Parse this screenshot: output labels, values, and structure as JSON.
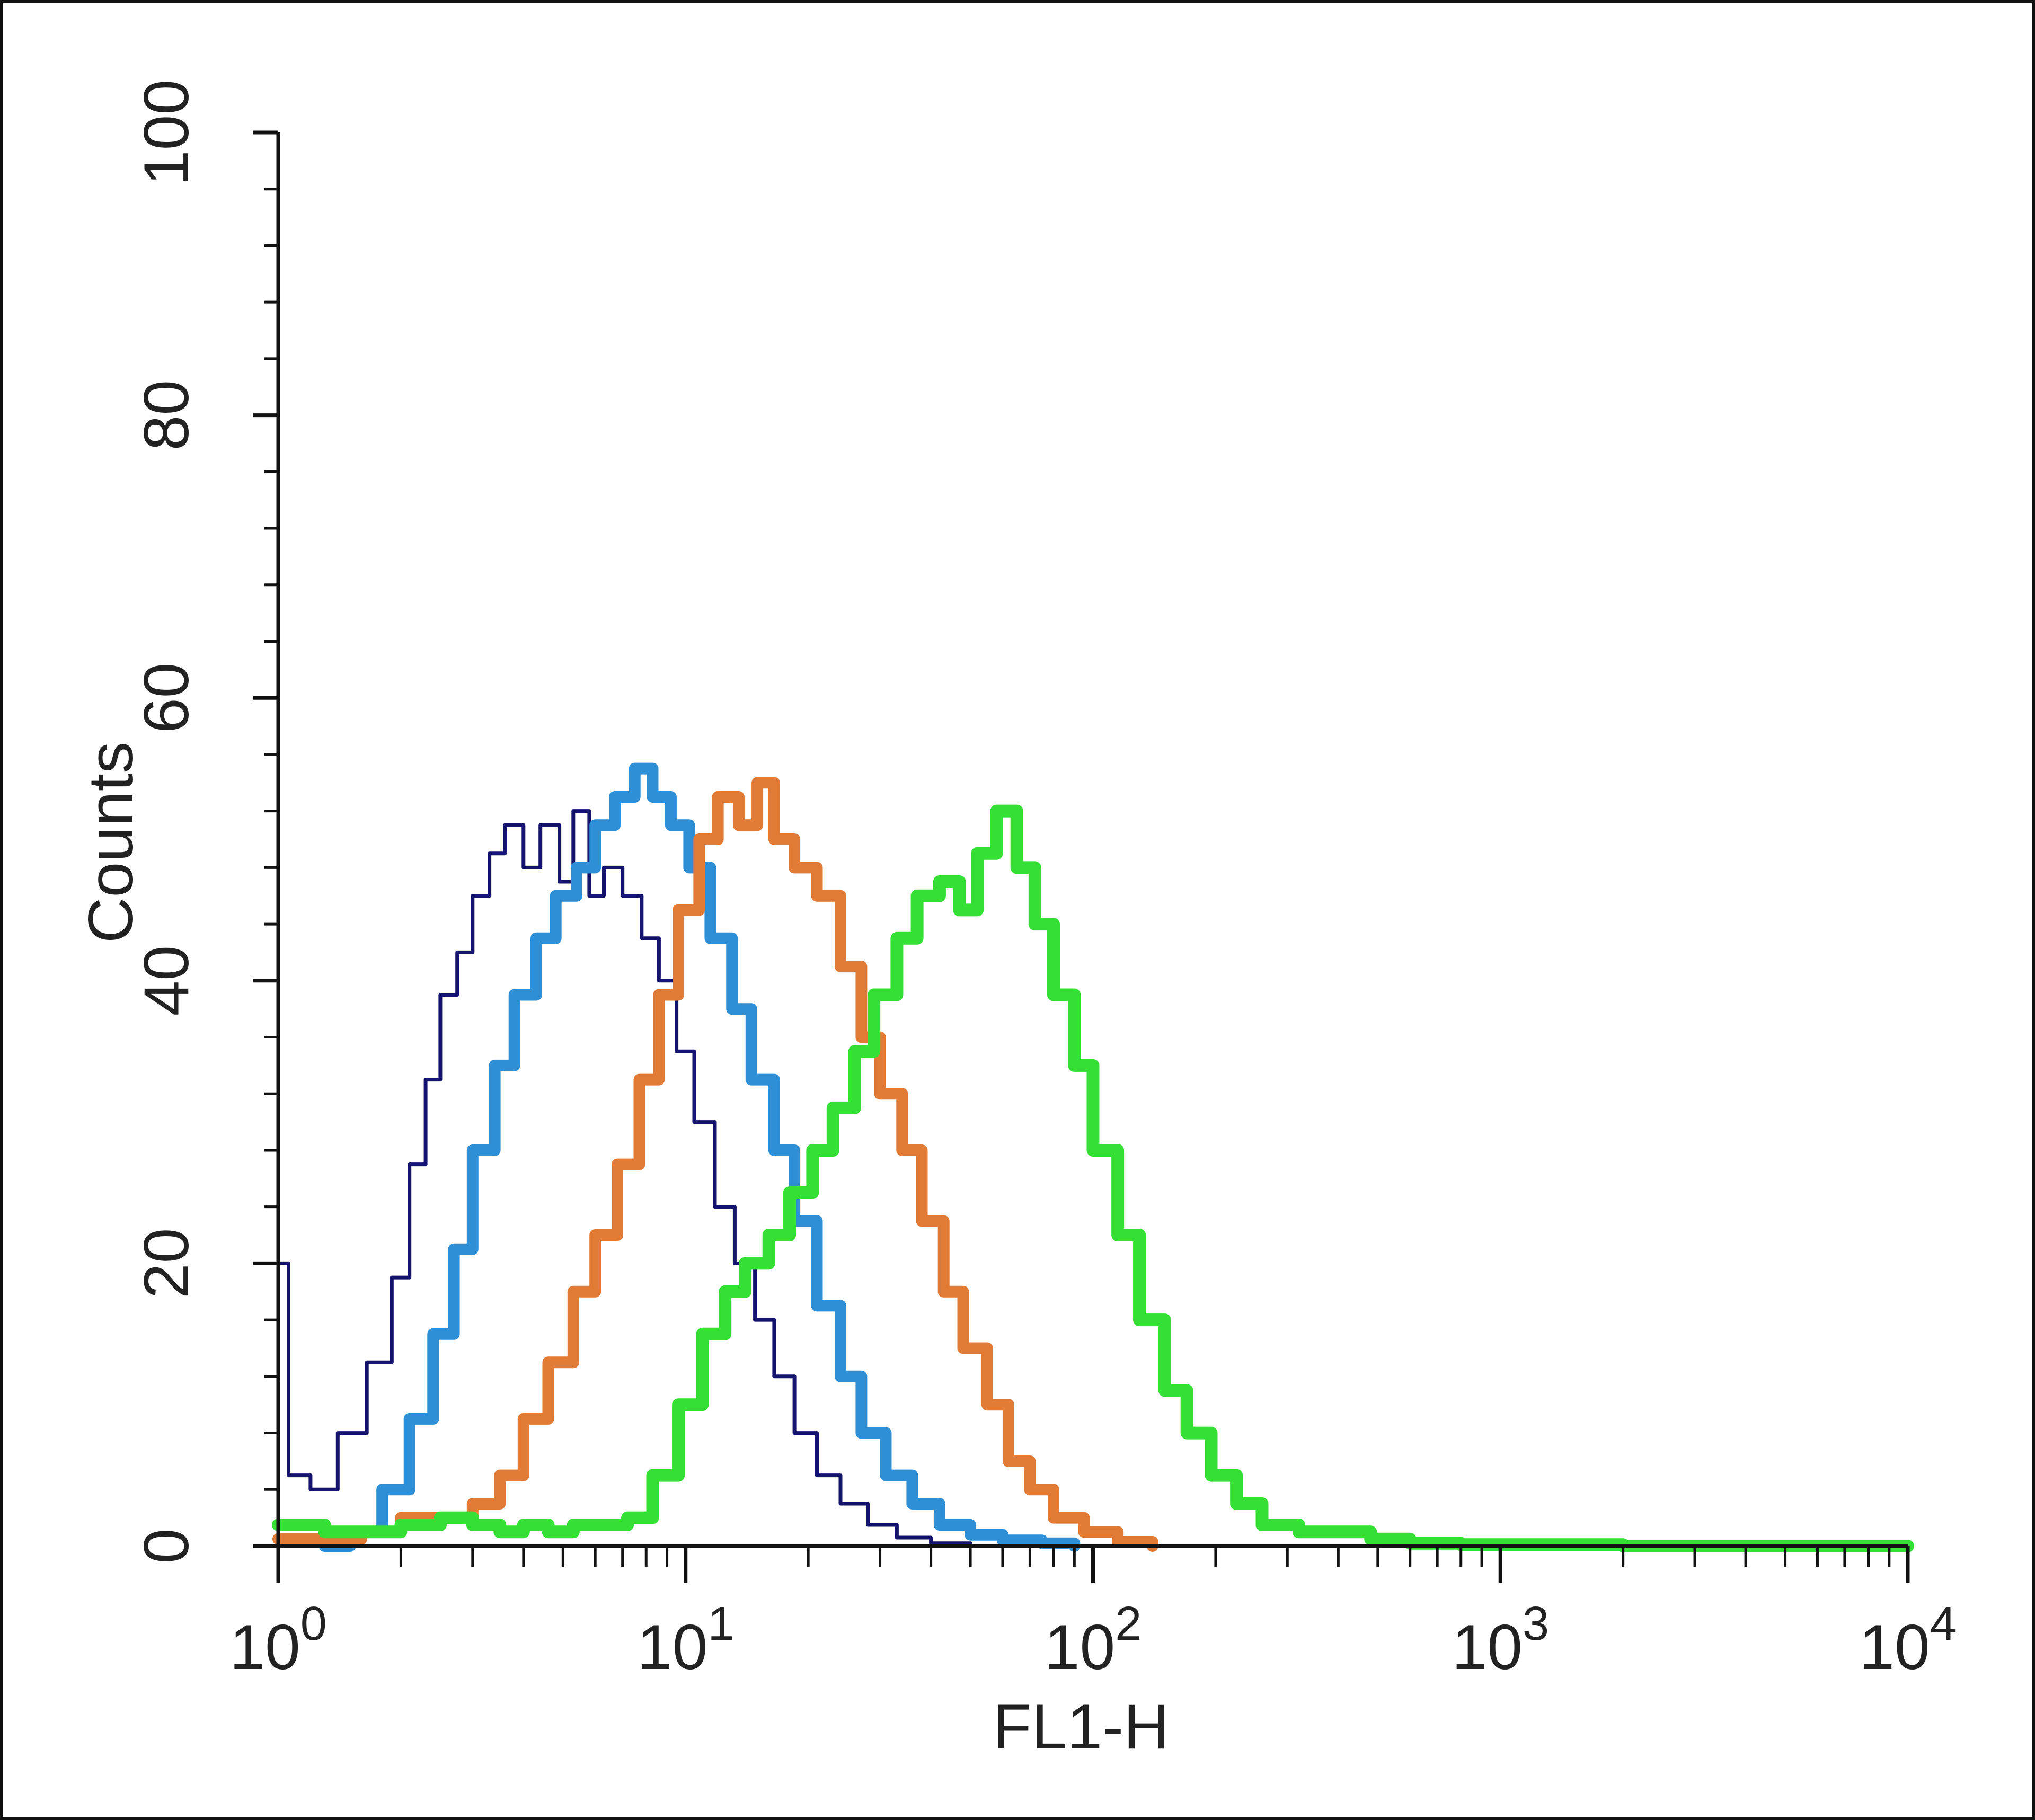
{
  "chart_data": {
    "type": "line",
    "title": "",
    "xlabel": "FL1-H",
    "ylabel": "Counts",
    "x_scale": "log",
    "xlim": [
      1,
      10000
    ],
    "ylim": [
      0,
      100
    ],
    "x_ticks": [
      {
        "value": 1,
        "base": "10",
        "exp": "0"
      },
      {
        "value": 10,
        "base": "10",
        "exp": "1"
      },
      {
        "value": 100,
        "base": "10",
        "exp": "2"
      },
      {
        "value": 1000,
        "base": "10",
        "exp": "3"
      },
      {
        "value": 10000,
        "base": "10",
        "exp": "4"
      }
    ],
    "y_ticks": [
      0,
      20,
      40,
      60,
      80,
      100
    ],
    "grid": false,
    "legend": "none",
    "series": [
      {
        "color": "#14146e",
        "points": [
          [
            1.0,
            20
          ],
          [
            1.06,
            5
          ],
          [
            1.2,
            4
          ],
          [
            1.4,
            8
          ],
          [
            1.65,
            13
          ],
          [
            1.9,
            19
          ],
          [
            2.1,
            27
          ],
          [
            2.3,
            33
          ],
          [
            2.5,
            39
          ],
          [
            2.75,
            42
          ],
          [
            3.0,
            46
          ],
          [
            3.3,
            49
          ],
          [
            3.6,
            51
          ],
          [
            4.0,
            48
          ],
          [
            4.4,
            51
          ],
          [
            4.9,
            47
          ],
          [
            5.3,
            52
          ],
          [
            5.8,
            46
          ],
          [
            6.3,
            48
          ],
          [
            7.0,
            46
          ],
          [
            7.8,
            43
          ],
          [
            8.6,
            40
          ],
          [
            9.5,
            35
          ],
          [
            10.5,
            30
          ],
          [
            11.8,
            24
          ],
          [
            13.2,
            20
          ],
          [
            14.8,
            16
          ],
          [
            16.5,
            12
          ],
          [
            18.5,
            8
          ],
          [
            21,
            5
          ],
          [
            24,
            3
          ],
          [
            28,
            1.5
          ],
          [
            33,
            0.6
          ],
          [
            40,
            0.2
          ],
          [
            50,
            0
          ]
        ]
      },
      {
        "color": "#2e8fd6",
        "points": [
          [
            1.3,
            0
          ],
          [
            1.5,
            1
          ],
          [
            1.8,
            4
          ],
          [
            2.1,
            9
          ],
          [
            2.4,
            15
          ],
          [
            2.7,
            21
          ],
          [
            3.0,
            28
          ],
          [
            3.4,
            34
          ],
          [
            3.8,
            39
          ],
          [
            4.3,
            43
          ],
          [
            4.8,
            46
          ],
          [
            5.4,
            48
          ],
          [
            6.0,
            51
          ],
          [
            6.7,
            53
          ],
          [
            7.5,
            55
          ],
          [
            8.3,
            53
          ],
          [
            9.2,
            51
          ],
          [
            10.2,
            48
          ],
          [
            11.5,
            43
          ],
          [
            13,
            38
          ],
          [
            14.5,
            33
          ],
          [
            16.5,
            28
          ],
          [
            18.5,
            23
          ],
          [
            21,
            17
          ],
          [
            24,
            12
          ],
          [
            27,
            8
          ],
          [
            31,
            5
          ],
          [
            36,
            3
          ],
          [
            42,
            1.5
          ],
          [
            50,
            0.8
          ],
          [
            60,
            0.4
          ],
          [
            75,
            0.2
          ],
          [
            90,
            0
          ]
        ]
      },
      {
        "color": "#e07a34",
        "points": [
          [
            1.0,
            0.5
          ],
          [
            1.6,
            1
          ],
          [
            2.0,
            2
          ],
          [
            2.5,
            2
          ],
          [
            3.0,
            3
          ],
          [
            3.5,
            5
          ],
          [
            4.0,
            9
          ],
          [
            4.6,
            13
          ],
          [
            5.3,
            18
          ],
          [
            6.0,
            22
          ],
          [
            6.8,
            27
          ],
          [
            7.7,
            33
          ],
          [
            8.6,
            39
          ],
          [
            9.6,
            45
          ],
          [
            10.8,
            50
          ],
          [
            12,
            53
          ],
          [
            13.5,
            51
          ],
          [
            15,
            54
          ],
          [
            16.5,
            50
          ],
          [
            18.5,
            48
          ],
          [
            21,
            46
          ],
          [
            24,
            41
          ],
          [
            27,
            36
          ],
          [
            30,
            32
          ],
          [
            34,
            28
          ],
          [
            38,
            23
          ],
          [
            43,
            18
          ],
          [
            48,
            14
          ],
          [
            55,
            10
          ],
          [
            62,
            6
          ],
          [
            70,
            4
          ],
          [
            80,
            2
          ],
          [
            95,
            1
          ],
          [
            115,
            0.3
          ],
          [
            140,
            0
          ]
        ]
      },
      {
        "color": "#33e033",
        "points": [
          [
            1.0,
            1.5
          ],
          [
            1.3,
            1
          ],
          [
            1.6,
            1
          ],
          [
            2.0,
            1.5
          ],
          [
            2.5,
            2
          ],
          [
            3.0,
            1.5
          ],
          [
            3.5,
            1
          ],
          [
            4.0,
            1.5
          ],
          [
            4.6,
            1
          ],
          [
            5.3,
            1.5
          ],
          [
            6.2,
            1.5
          ],
          [
            7.2,
            2
          ],
          [
            8.3,
            5
          ],
          [
            9.6,
            10
          ],
          [
            11,
            15
          ],
          [
            12.5,
            18
          ],
          [
            14,
            20
          ],
          [
            16,
            22
          ],
          [
            18,
            25
          ],
          [
            20.5,
            28
          ],
          [
            23,
            31
          ],
          [
            26,
            35
          ],
          [
            29,
            39
          ],
          [
            33,
            43
          ],
          [
            37,
            46
          ],
          [
            42,
            47
          ],
          [
            47,
            45
          ],
          [
            52,
            49
          ],
          [
            58,
            52
          ],
          [
            65,
            48
          ],
          [
            72,
            44
          ],
          [
            80,
            39
          ],
          [
            90,
            34
          ],
          [
            100,
            28
          ],
          [
            115,
            22
          ],
          [
            130,
            16
          ],
          [
            150,
            11
          ],
          [
            170,
            8
          ],
          [
            195,
            5
          ],
          [
            225,
            3
          ],
          [
            260,
            1.5
          ],
          [
            320,
            1
          ],
          [
            400,
            1
          ],
          [
            480,
            0.5
          ],
          [
            600,
            0.2
          ],
          [
            800,
            0.1
          ],
          [
            2000,
            0
          ],
          [
            10000,
            0
          ]
        ]
      }
    ]
  }
}
